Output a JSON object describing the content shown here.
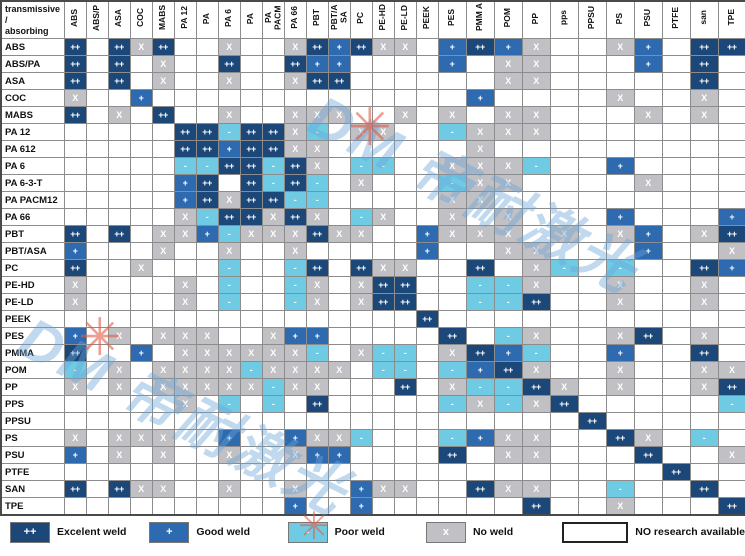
{
  "header": {
    "corner_line1": "transmissive /",
    "corner_line2": "absorbing",
    "columns": [
      "ABS",
      "ABS/P",
      "ASA",
      "COC",
      "MABS",
      "PA 12",
      "PA",
      "PA 6",
      "PA",
      "PA PACM",
      "PA 66",
      "PBT",
      "PBT/A SA",
      "PC",
      "PE-HD",
      "PE-LD",
      "PEEK",
      "PES",
      "PMM A",
      "POM",
      "PP",
      "pps",
      "PPSU",
      "PS",
      "PSU",
      "PTFE",
      "san",
      "TPE"
    ]
  },
  "symbols": {
    "E": "++",
    "G": "+",
    "P": "-",
    "N": "X"
  },
  "colors": {
    "excellent": "#1b4779",
    "good": "#2d6ab0",
    "poor": "#6fcbe3",
    "no_weld": "#c1c1c5",
    "no_research": "#ffffff"
  },
  "rows": [
    {
      "label": "ABS",
      "cells": [
        "E",
        "",
        "E",
        "N",
        "E",
        "",
        "",
        "N",
        "",
        "",
        "N",
        "E",
        "G",
        "E",
        "N",
        "N",
        "",
        "G",
        "E",
        "G",
        "N",
        "",
        "",
        "N",
        "G",
        "",
        "E",
        "E"
      ]
    },
    {
      "label": "ABS/PA",
      "cells": [
        "E",
        "",
        "E",
        "",
        "N",
        "",
        "",
        "E",
        "",
        "",
        "E",
        "G",
        "G",
        "",
        "",
        "",
        "",
        "G",
        "",
        "N",
        "N",
        "",
        "",
        "",
        "G",
        "",
        "E",
        ""
      ]
    },
    {
      "label": "ASA",
      "cells": [
        "E",
        "",
        "E",
        "",
        "N",
        "",
        "",
        "N",
        "",
        "",
        "N",
        "E",
        "E",
        "",
        "",
        "",
        "",
        "",
        "",
        "N",
        "N",
        "",
        "",
        "",
        "",
        "",
        "E",
        ""
      ]
    },
    {
      "label": "COC",
      "cells": [
        "N",
        "",
        "",
        "G",
        "",
        "",
        "",
        "",
        "",
        "",
        "",
        "",
        "",
        "",
        "",
        "",
        "",
        "",
        "G",
        "",
        "",
        "",
        "",
        "N",
        "",
        "",
        "N",
        ""
      ]
    },
    {
      "label": "MABS",
      "cells": [
        "E",
        "",
        "N",
        "",
        "E",
        "",
        "",
        "N",
        "",
        "",
        "N",
        "N",
        "N",
        "",
        "",
        "N",
        "",
        "N",
        "",
        "N",
        "N",
        "",
        "",
        "",
        "N",
        "",
        "N",
        ""
      ]
    },
    {
      "label": "PA 12",
      "cells": [
        "",
        "",
        "",
        "",
        "",
        "E",
        "E",
        "P",
        "E",
        "E",
        "N",
        "P",
        "",
        "N",
        "N",
        "",
        "",
        "P",
        "N",
        "N",
        "N",
        "",
        "",
        "",
        "",
        "",
        "",
        ""
      ]
    },
    {
      "label": "PA 612",
      "cells": [
        "",
        "",
        "",
        "",
        "",
        "E",
        "E",
        "G",
        "E",
        "E",
        "N",
        "N",
        "",
        "",
        "",
        "",
        "",
        "",
        "N",
        "",
        "",
        "",
        "",
        "",
        "",
        "",
        "",
        ""
      ]
    },
    {
      "label": "PA 6",
      "cells": [
        "",
        "",
        "",
        "",
        "",
        "P",
        "P",
        "E",
        "E",
        "P",
        "E",
        "N",
        "",
        "P",
        "P",
        "",
        "",
        "N",
        "N",
        "N",
        "P",
        "",
        "",
        "G",
        "",
        "",
        "",
        ""
      ]
    },
    {
      "label": "PA 6-3-T",
      "cells": [
        "",
        "",
        "",
        "",
        "",
        "G",
        "E",
        "",
        "E",
        "P",
        "E",
        "P",
        "",
        "N",
        "",
        "",
        "",
        "P",
        "N",
        "N",
        "",
        "",
        "",
        "",
        "N",
        "",
        "",
        ""
      ]
    },
    {
      "label": "PA PACM12",
      "cells": [
        "",
        "",
        "",
        "",
        "",
        "G",
        "E",
        "N",
        "E",
        "E",
        "P",
        "P",
        "",
        "",
        "",
        "",
        "",
        "N",
        "N",
        "",
        "",
        "",
        "",
        "",
        "",
        "",
        "",
        ""
      ]
    },
    {
      "label": "PA 66",
      "cells": [
        "",
        "",
        "",
        "",
        "",
        "N",
        "P",
        "E",
        "E",
        "N",
        "E",
        "N",
        "",
        "P",
        "N",
        "",
        "",
        "N",
        "",
        "N",
        "",
        "",
        "",
        "G",
        "",
        "",
        "",
        "G"
      ]
    },
    {
      "label": "PBT",
      "cells": [
        "E",
        "",
        "E",
        "",
        "N",
        "N",
        "G",
        "P",
        "N",
        "N",
        "N",
        "E",
        "N",
        "N",
        "",
        "",
        "G",
        "N",
        "N",
        "N",
        "",
        "N",
        "",
        "N",
        "G",
        "",
        "N",
        "E"
      ]
    },
    {
      "label": "PBT/ASA",
      "cells": [
        "G",
        "",
        "",
        "",
        "N",
        "",
        "",
        "N",
        "",
        "",
        "N",
        "",
        "",
        "",
        "",
        "",
        "G",
        "",
        "",
        "N",
        "N",
        "",
        "",
        "",
        "G",
        "",
        "",
        "N"
      ]
    },
    {
      "label": "PC",
      "cells": [
        "E",
        "",
        "",
        "N",
        "",
        "",
        "",
        "P",
        "",
        "",
        "P",
        "E",
        "",
        "E",
        "N",
        "N",
        "",
        "",
        "E",
        "",
        "N",
        "P",
        "",
        "P",
        "",
        "",
        "E",
        "G"
      ]
    },
    {
      "label": "PE-HD",
      "cells": [
        "N",
        "",
        "",
        "",
        "",
        "N",
        "",
        "P",
        "",
        "",
        "P",
        "N",
        "",
        "N",
        "E",
        "E",
        "",
        "",
        "P",
        "P",
        "N",
        "",
        "",
        "N",
        "",
        "",
        "N",
        ""
      ]
    },
    {
      "label": "PE-LD",
      "cells": [
        "N",
        "",
        "",
        "",
        "",
        "N",
        "",
        "P",
        "",
        "",
        "P",
        "N",
        "",
        "N",
        "E",
        "E",
        "",
        "",
        "P",
        "P",
        "E",
        "",
        "",
        "N",
        "",
        "",
        "N",
        ""
      ]
    },
    {
      "label": "PEEK",
      "cells": [
        "",
        "",
        "",
        "",
        "",
        "",
        "",
        "",
        "",
        "",
        "",
        "",
        "",
        "",
        "",
        "",
        "E",
        "",
        "",
        "",
        "",
        "",
        "",
        "",
        "",
        "",
        "",
        ""
      ]
    },
    {
      "label": "PES",
      "cells": [
        "G",
        "",
        "N",
        "",
        "N",
        "N",
        "N",
        "",
        "",
        "N",
        "G",
        "G",
        "",
        "",
        "",
        "",
        "",
        "E",
        "",
        "P",
        "N",
        "",
        "",
        "N",
        "E",
        "",
        "N",
        ""
      ]
    },
    {
      "label": "PMMA",
      "cells": [
        "E",
        "",
        "",
        "G",
        "",
        "N",
        "N",
        "N",
        "N",
        "N",
        "N",
        "P",
        "",
        "N",
        "P",
        "P",
        "",
        "N",
        "E",
        "G",
        "P",
        "",
        "",
        "G",
        "",
        "",
        "E",
        ""
      ]
    },
    {
      "label": "POM",
      "cells": [
        "P",
        "",
        "N",
        "",
        "N",
        "N",
        "N",
        "N",
        "P",
        "N",
        "N",
        "N",
        "N",
        "",
        "P",
        "P",
        "",
        "P",
        "G",
        "E",
        "N",
        "",
        "",
        "N",
        "",
        "",
        "N",
        "N"
      ]
    },
    {
      "label": "PP",
      "cells": [
        "N",
        "",
        "N",
        "",
        "N",
        "N",
        "N",
        "N",
        "N",
        "P",
        "N",
        "N",
        "",
        "",
        "",
        "E",
        "",
        "N",
        "P",
        "P",
        "E",
        "N",
        "",
        "N",
        "",
        "",
        "N",
        "E"
      ]
    },
    {
      "label": "PPS",
      "cells": [
        "",
        "",
        "",
        "",
        "",
        "N",
        "",
        "P",
        "",
        "P",
        "",
        "E",
        "",
        "",
        "",
        "",
        "",
        "P",
        "N",
        "P",
        "N",
        "E",
        "",
        "",
        "",
        "",
        "",
        "P"
      ]
    },
    {
      "label": "PPSU",
      "cells": [
        "",
        "",
        "",
        "",
        "",
        "",
        "",
        "",
        "",
        "",
        "",
        "",
        "",
        "",
        "",
        "",
        "",
        "",
        "",
        "",
        "",
        "",
        "E",
        "",
        "",
        "",
        "",
        ""
      ]
    },
    {
      "label": "PS",
      "cells": [
        "N",
        "",
        "N",
        "N",
        "N",
        "",
        "",
        "G",
        "",
        "",
        "G",
        "N",
        "N",
        "P",
        "",
        "",
        "",
        "P",
        "G",
        "N",
        "N",
        "",
        "",
        "E",
        "N",
        "",
        "P",
        ""
      ]
    },
    {
      "label": "PSU",
      "cells": [
        "G",
        "",
        "N",
        "",
        "N",
        "",
        "",
        "N",
        "",
        "",
        "N",
        "G",
        "G",
        "",
        "",
        "",
        "",
        "E",
        "",
        "N",
        "N",
        "",
        "",
        "",
        "E",
        "",
        "",
        "N"
      ]
    },
    {
      "label": "PTFE",
      "cells": [
        "",
        "",
        "",
        "",
        "",
        "",
        "",
        "",
        "",
        "",
        "",
        "",
        "",
        "",
        "",
        "",
        "",
        "",
        "",
        "",
        "",
        "",
        "",
        "",
        "",
        "E",
        "",
        ""
      ]
    },
    {
      "label": "SAN",
      "cells": [
        "E",
        "",
        "E",
        "N",
        "N",
        "",
        "",
        "N",
        "",
        "",
        "N",
        "",
        "",
        "G",
        "N",
        "N",
        "",
        "",
        "E",
        "N",
        "N",
        "",
        "",
        "P",
        "",
        "",
        "E",
        ""
      ]
    },
    {
      "label": "TPE",
      "cells": [
        "",
        "",
        "",
        "",
        "",
        "",
        "",
        "",
        "",
        "",
        "G",
        "",
        "",
        "G",
        "",
        "",
        "",
        "",
        "",
        "",
        "E",
        "",
        "",
        "N",
        "",
        "",
        "",
        "E"
      ]
    }
  ],
  "legend": [
    {
      "code": "E",
      "symbol": "++",
      "label": "Excelent weld"
    },
    {
      "code": "G",
      "symbol": "+",
      "label": "Good weld"
    },
    {
      "code": "P",
      "symbol": "-",
      "label": "Poor weld"
    },
    {
      "code": "N",
      "symbol": "x",
      "label": "No weld"
    },
    {
      "code": "R",
      "symbol": "",
      "label": "NO research available"
    }
  ],
  "watermark": {
    "text": "DM 帝耐激光",
    "star": "✳"
  }
}
